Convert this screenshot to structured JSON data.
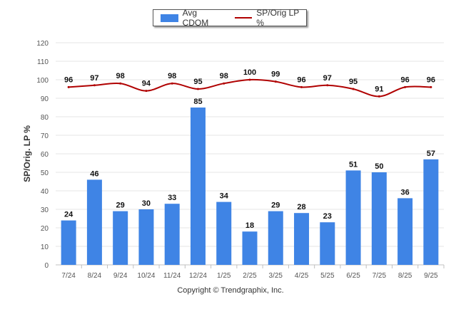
{
  "chart_data": {
    "type": "bar",
    "categories": [
      "7/24",
      "8/24",
      "9/24",
      "10/24",
      "11/24",
      "12/24",
      "1/25",
      "2/25",
      "3/25",
      "4/25",
      "5/25",
      "6/25",
      "7/25",
      "8/25",
      "9/25"
    ],
    "series": [
      {
        "name": "Avg CDOM",
        "type": "bar",
        "color": "#3f84e5",
        "values": [
          24,
          46,
          29,
          30,
          33,
          85,
          34,
          18,
          29,
          28,
          23,
          51,
          50,
          36,
          57
        ]
      },
      {
        "name": "SP/Orig LP %",
        "type": "line",
        "color": "#b00000",
        "values": [
          96,
          97,
          98,
          94,
          98,
          95,
          98,
          100,
          99,
          96,
          97,
          95,
          91,
          96,
          96
        ]
      }
    ],
    "ylabel": "SP/Orig. LP %",
    "xlabel": "",
    "ylim": [
      0,
      120
    ],
    "yticks": [
      0,
      10,
      20,
      30,
      40,
      50,
      60,
      70,
      80,
      90,
      100,
      110,
      120
    ],
    "grid": true,
    "legend": "top-center"
  },
  "footer": {
    "copyright": "Copyright © Trendgraphix, Inc."
  }
}
